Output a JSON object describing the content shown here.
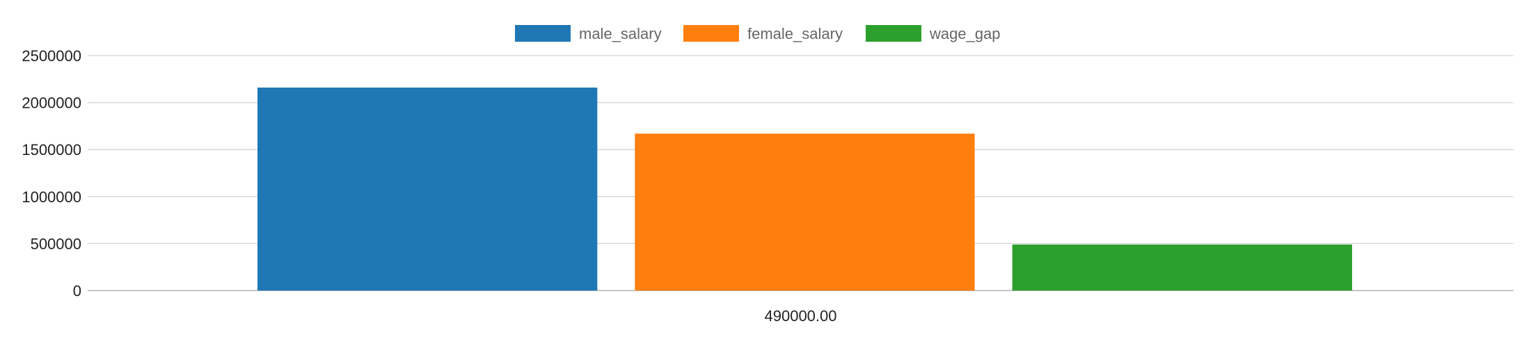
{
  "chart_data": {
    "type": "bar",
    "categories": [
      "490000.00"
    ],
    "series": [
      {
        "name": "male_salary",
        "values": [
          2160000
        ],
        "color": "#1f77b4"
      },
      {
        "name": "female_salary",
        "values": [
          1670000
        ],
        "color": "#ff7f0e"
      },
      {
        "name": "wage_gap",
        "values": [
          490000
        ],
        "color": "#2ca02c"
      }
    ],
    "ylim": [
      0,
      2500000
    ],
    "yticks": [
      "0",
      "500000",
      "1000000",
      "1500000",
      "2000000",
      "2500000"
    ],
    "grid": true,
    "legend_position": "top-center",
    "title": "",
    "xlabel": "",
    "ylabel": ""
  }
}
